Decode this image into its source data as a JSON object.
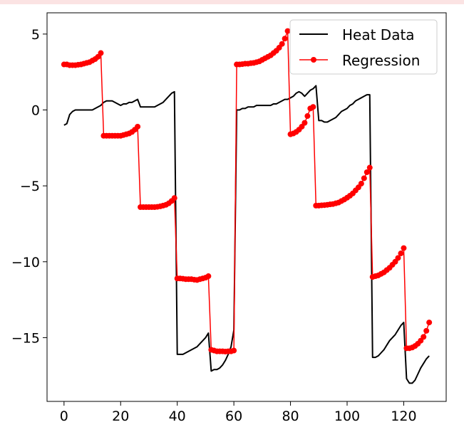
{
  "chart_data": {
    "type": "line",
    "title": "",
    "xlabel": "",
    "ylabel": "",
    "xlim": [
      -6,
      135
    ],
    "ylim": [
      -19.2,
      6.4
    ],
    "grid": false,
    "legend_placement": "top-right",
    "x_ticks": [
      0,
      20,
      40,
      60,
      80,
      100,
      120
    ],
    "y_ticks": [
      5,
      0,
      -5,
      -10,
      -15
    ],
    "x_tick_labels": [
      "0",
      "20",
      "40",
      "60",
      "80",
      "100",
      "120"
    ],
    "y_tick_labels": [
      "5",
      "0",
      "−5",
      "−10",
      "−15"
    ],
    "series": [
      {
        "name": "Heat Data",
        "color": "#000000",
        "marker": "none",
        "points": [
          [
            0,
            -1.0
          ],
          [
            1,
            -0.9
          ],
          [
            2,
            -0.3
          ],
          [
            3,
            -0.1
          ],
          [
            4,
            0
          ],
          [
            5,
            0
          ],
          [
            6,
            0
          ],
          [
            7,
            0
          ],
          [
            8,
            0
          ],
          [
            9,
            0
          ],
          [
            10,
            0
          ],
          [
            11,
            0.1
          ],
          [
            12,
            0.2
          ],
          [
            13,
            0.3
          ],
          [
            14,
            0.5
          ],
          [
            15,
            0.6
          ],
          [
            16,
            0.6
          ],
          [
            17,
            0.6
          ],
          [
            18,
            0.5
          ],
          [
            19,
            0.4
          ],
          [
            20,
            0.3
          ],
          [
            21,
            0.4
          ],
          [
            22,
            0.4
          ],
          [
            23,
            0.5
          ],
          [
            24,
            0.5
          ],
          [
            25,
            0.6
          ],
          [
            26,
            0.7
          ],
          [
            27,
            0.2
          ],
          [
            28,
            0.2
          ],
          [
            29,
            0.2
          ],
          [
            30,
            0.2
          ],
          [
            31,
            0.2
          ],
          [
            32,
            0.2
          ],
          [
            33,
            0.3
          ],
          [
            34,
            0.4
          ],
          [
            35,
            0.5
          ],
          [
            36,
            0.7
          ],
          [
            37,
            0.9
          ],
          [
            38,
            1.1
          ],
          [
            39,
            1.2
          ],
          [
            40,
            -16.1
          ],
          [
            41,
            -16.1
          ],
          [
            42,
            -16.1
          ],
          [
            43,
            -16.0
          ],
          [
            44,
            -15.9
          ],
          [
            45,
            -15.8
          ],
          [
            46,
            -15.7
          ],
          [
            47,
            -15.6
          ],
          [
            48,
            -15.4
          ],
          [
            49,
            -15.2
          ],
          [
            50,
            -15.0
          ],
          [
            51,
            -14.7
          ],
          [
            52,
            -17.2
          ],
          [
            53,
            -17.1
          ],
          [
            54,
            -17.1
          ],
          [
            55,
            -17.0
          ],
          [
            56,
            -16.8
          ],
          [
            57,
            -16.5
          ],
          [
            58,
            -16.1
          ],
          [
            59,
            -15.6
          ],
          [
            60,
            -14.5
          ],
          [
            61,
            0
          ],
          [
            62,
            0
          ],
          [
            63,
            0.1
          ],
          [
            64,
            0.1
          ],
          [
            65,
            0.2
          ],
          [
            66,
            0.2
          ],
          [
            67,
            0.2
          ],
          [
            68,
            0.3
          ],
          [
            69,
            0.3
          ],
          [
            70,
            0.3
          ],
          [
            71,
            0.3
          ],
          [
            72,
            0.3
          ],
          [
            73,
            0.3
          ],
          [
            74,
            0.4
          ],
          [
            75,
            0.4
          ],
          [
            76,
            0.5
          ],
          [
            77,
            0.6
          ],
          [
            78,
            0.7
          ],
          [
            79,
            0.7
          ],
          [
            80,
            0.8
          ],
          [
            81,
            0.9
          ],
          [
            82,
            1.1
          ],
          [
            83,
            1.2
          ],
          [
            84,
            1.1
          ],
          [
            85,
            0.9
          ],
          [
            86,
            1.1
          ],
          [
            87,
            1.3
          ],
          [
            88,
            1.4
          ],
          [
            89,
            1.6
          ],
          [
            90,
            -0.7
          ],
          [
            91,
            -0.7
          ],
          [
            92,
            -0.8
          ],
          [
            93,
            -0.8
          ],
          [
            94,
            -0.7
          ],
          [
            95,
            -0.6
          ],
          [
            96,
            -0.5
          ],
          [
            97,
            -0.3
          ],
          [
            98,
            -0.1
          ],
          [
            99,
            0
          ],
          [
            100,
            0.1
          ],
          [
            101,
            0.3
          ],
          [
            102,
            0.4
          ],
          [
            103,
            0.6
          ],
          [
            104,
            0.7
          ],
          [
            105,
            0.8
          ],
          [
            106,
            0.9
          ],
          [
            107,
            1.0
          ],
          [
            108,
            1.0
          ],
          [
            109,
            -16.3
          ],
          [
            110,
            -16.3
          ],
          [
            111,
            -16.2
          ],
          [
            112,
            -16.0
          ],
          [
            113,
            -15.8
          ],
          [
            114,
            -15.5
          ],
          [
            115,
            -15.2
          ],
          [
            116,
            -15.0
          ],
          [
            117,
            -14.8
          ],
          [
            118,
            -14.5
          ],
          [
            119,
            -14.2
          ],
          [
            120,
            -14.0
          ],
          [
            121,
            -17.7
          ],
          [
            122,
            -18.0
          ],
          [
            123,
            -18.0
          ],
          [
            124,
            -17.8
          ],
          [
            125,
            -17.4
          ],
          [
            126,
            -17.0
          ],
          [
            127,
            -16.7
          ],
          [
            128,
            -16.4
          ],
          [
            129,
            -16.2
          ]
        ]
      },
      {
        "name": "Regression",
        "color": "#ff0000",
        "marker": "circle",
        "points": [
          [
            0,
            3.0
          ],
          [
            1,
            3.0
          ],
          [
            2,
            2.95
          ],
          [
            3,
            2.95
          ],
          [
            4,
            2.95
          ],
          [
            5,
            2.98
          ],
          [
            6,
            3.0
          ],
          [
            7,
            3.05
          ],
          [
            8,
            3.1
          ],
          [
            9,
            3.15
          ],
          [
            10,
            3.25
          ],
          [
            11,
            3.35
          ],
          [
            12,
            3.5
          ],
          [
            13,
            3.75
          ],
          [
            14,
            -1.7
          ],
          [
            15,
            -1.7
          ],
          [
            16,
            -1.7
          ],
          [
            17,
            -1.7
          ],
          [
            18,
            -1.7
          ],
          [
            19,
            -1.7
          ],
          [
            20,
            -1.7
          ],
          [
            21,
            -1.65
          ],
          [
            22,
            -1.6
          ],
          [
            23,
            -1.55
          ],
          [
            24,
            -1.45
          ],
          [
            25,
            -1.3
          ],
          [
            26,
            -1.1
          ],
          [
            27,
            -6.4
          ],
          [
            28,
            -6.4
          ],
          [
            29,
            -6.4
          ],
          [
            30,
            -6.4
          ],
          [
            31,
            -6.4
          ],
          [
            32,
            -6.4
          ],
          [
            33,
            -6.38
          ],
          [
            34,
            -6.35
          ],
          [
            35,
            -6.3
          ],
          [
            36,
            -6.25
          ],
          [
            37,
            -6.15
          ],
          [
            38,
            -6.0
          ],
          [
            39,
            -5.8
          ],
          [
            40,
            -11.1
          ],
          [
            41,
            -11.1
          ],
          [
            42,
            -11.12
          ],
          [
            43,
            -11.15
          ],
          [
            44,
            -11.15
          ],
          [
            45,
            -11.15
          ],
          [
            46,
            -11.18
          ],
          [
            47,
            -11.2
          ],
          [
            48,
            -11.15
          ],
          [
            49,
            -11.1
          ],
          [
            50,
            -11.05
          ],
          [
            51,
            -10.95
          ],
          [
            52,
            -15.8
          ],
          [
            53,
            -15.85
          ],
          [
            54,
            -15.9
          ],
          [
            55,
            -15.9
          ],
          [
            56,
            -15.9
          ],
          [
            57,
            -15.92
          ],
          [
            58,
            -15.9
          ],
          [
            59,
            -15.9
          ],
          [
            60,
            -15.85
          ],
          [
            61,
            3.0
          ],
          [
            62,
            3.0
          ],
          [
            63,
            3.02
          ],
          [
            64,
            3.05
          ],
          [
            65,
            3.05
          ],
          [
            66,
            3.08
          ],
          [
            67,
            3.1
          ],
          [
            68,
            3.15
          ],
          [
            69,
            3.2
          ],
          [
            70,
            3.3
          ],
          [
            71,
            3.4
          ],
          [
            72,
            3.5
          ],
          [
            73,
            3.6
          ],
          [
            74,
            3.75
          ],
          [
            75,
            3.9
          ],
          [
            76,
            4.1
          ],
          [
            77,
            4.35
          ],
          [
            78,
            4.7
          ],
          [
            79,
            5.2
          ],
          [
            80,
            -1.6
          ],
          [
            81,
            -1.55
          ],
          [
            82,
            -1.45
          ],
          [
            83,
            -1.3
          ],
          [
            84,
            -1.1
          ],
          [
            85,
            -0.85
          ],
          [
            86,
            -0.4
          ],
          [
            87,
            0.1
          ],
          [
            88,
            0.2
          ],
          [
            89,
            -6.3
          ],
          [
            90,
            -6.3
          ],
          [
            91,
            -6.28
          ],
          [
            92,
            -6.27
          ],
          [
            93,
            -6.25
          ],
          [
            94,
            -6.22
          ],
          [
            95,
            -6.2
          ],
          [
            96,
            -6.15
          ],
          [
            97,
            -6.1
          ],
          [
            98,
            -6.0
          ],
          [
            99,
            -5.9
          ],
          [
            100,
            -5.78
          ],
          [
            101,
            -5.65
          ],
          [
            102,
            -5.5
          ],
          [
            103,
            -5.3
          ],
          [
            104,
            -5.1
          ],
          [
            105,
            -4.85
          ],
          [
            106,
            -4.5
          ],
          [
            107,
            -4.1
          ],
          [
            108,
            -3.8
          ],
          [
            109,
            -11.0
          ],
          [
            110,
            -10.95
          ],
          [
            111,
            -10.9
          ],
          [
            112,
            -10.8
          ],
          [
            113,
            -10.7
          ],
          [
            114,
            -10.55
          ],
          [
            115,
            -10.4
          ],
          [
            116,
            -10.2
          ],
          [
            117,
            -10.0
          ],
          [
            118,
            -9.75
          ],
          [
            119,
            -9.45
          ],
          [
            120,
            -9.1
          ],
          [
            121,
            -15.7
          ],
          [
            122,
            -15.7
          ],
          [
            123,
            -15.65
          ],
          [
            124,
            -15.55
          ],
          [
            125,
            -15.4
          ],
          [
            126,
            -15.2
          ],
          [
            127,
            -14.95
          ],
          [
            128,
            -14.55
          ],
          [
            129,
            -14.0
          ]
        ]
      }
    ]
  }
}
